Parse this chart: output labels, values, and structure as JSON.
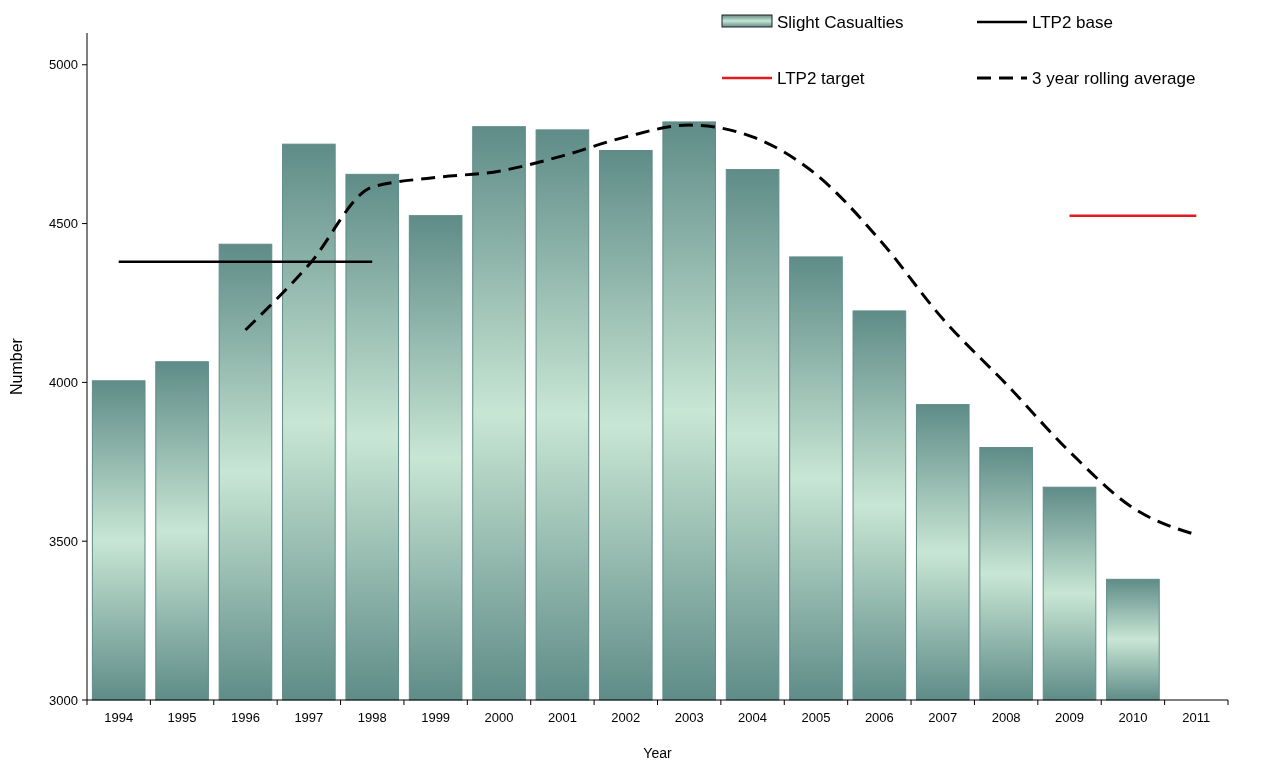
{
  "chart_data": {
    "type": "bar",
    "xlabel": "Year",
    "ylabel": "Number",
    "categories": [
      "1994",
      "1995",
      "1996",
      "1997",
      "1998",
      "1999",
      "2000",
      "2001",
      "2002",
      "2003",
      "2004",
      "2005",
      "2006",
      "2007",
      "2008",
      "2009",
      "2010",
      "2011"
    ],
    "series": [
      {
        "name": "Slight Casualties",
        "color": "#5f8c88",
        "values": [
          4005,
          4065,
          4435,
          4750,
          4655,
          4525,
          4805,
          4795,
          4730,
          4820,
          4670,
          4395,
          4225,
          3930,
          3795,
          3670,
          3380,
          null
        ]
      },
      {
        "name": "LTP2 base",
        "type": "line",
        "color": "#000000",
        "line_style": "solid",
        "values": [
          4380,
          4380,
          4380,
          4380,
          4380,
          null,
          null,
          null,
          null,
          null,
          null,
          null,
          null,
          null,
          null,
          null,
          null,
          null
        ]
      },
      {
        "name": "LTP2 target",
        "type": "line",
        "color": "#e41a1c",
        "line_style": "solid",
        "values": [
          null,
          null,
          null,
          null,
          null,
          null,
          null,
          null,
          null,
          null,
          null,
          null,
          null,
          null,
          null,
          4525,
          4525,
          4525
        ]
      },
      {
        "name": "3 year rolling average",
        "type": "line",
        "color": "#000000",
        "line_style": "dashed",
        "values": [
          null,
          null,
          4165,
          4370,
          4615,
          4645,
          4665,
          4713,
          4773,
          4810,
          4773,
          4655,
          4450,
          4200,
          3995,
          3782,
          3605,
          3520
        ]
      }
    ],
    "ylim": [
      3000,
      5100
    ],
    "yticks": [
      3000,
      3500,
      4000,
      4500,
      5000
    ],
    "grid": false,
    "legend": "top right"
  }
}
